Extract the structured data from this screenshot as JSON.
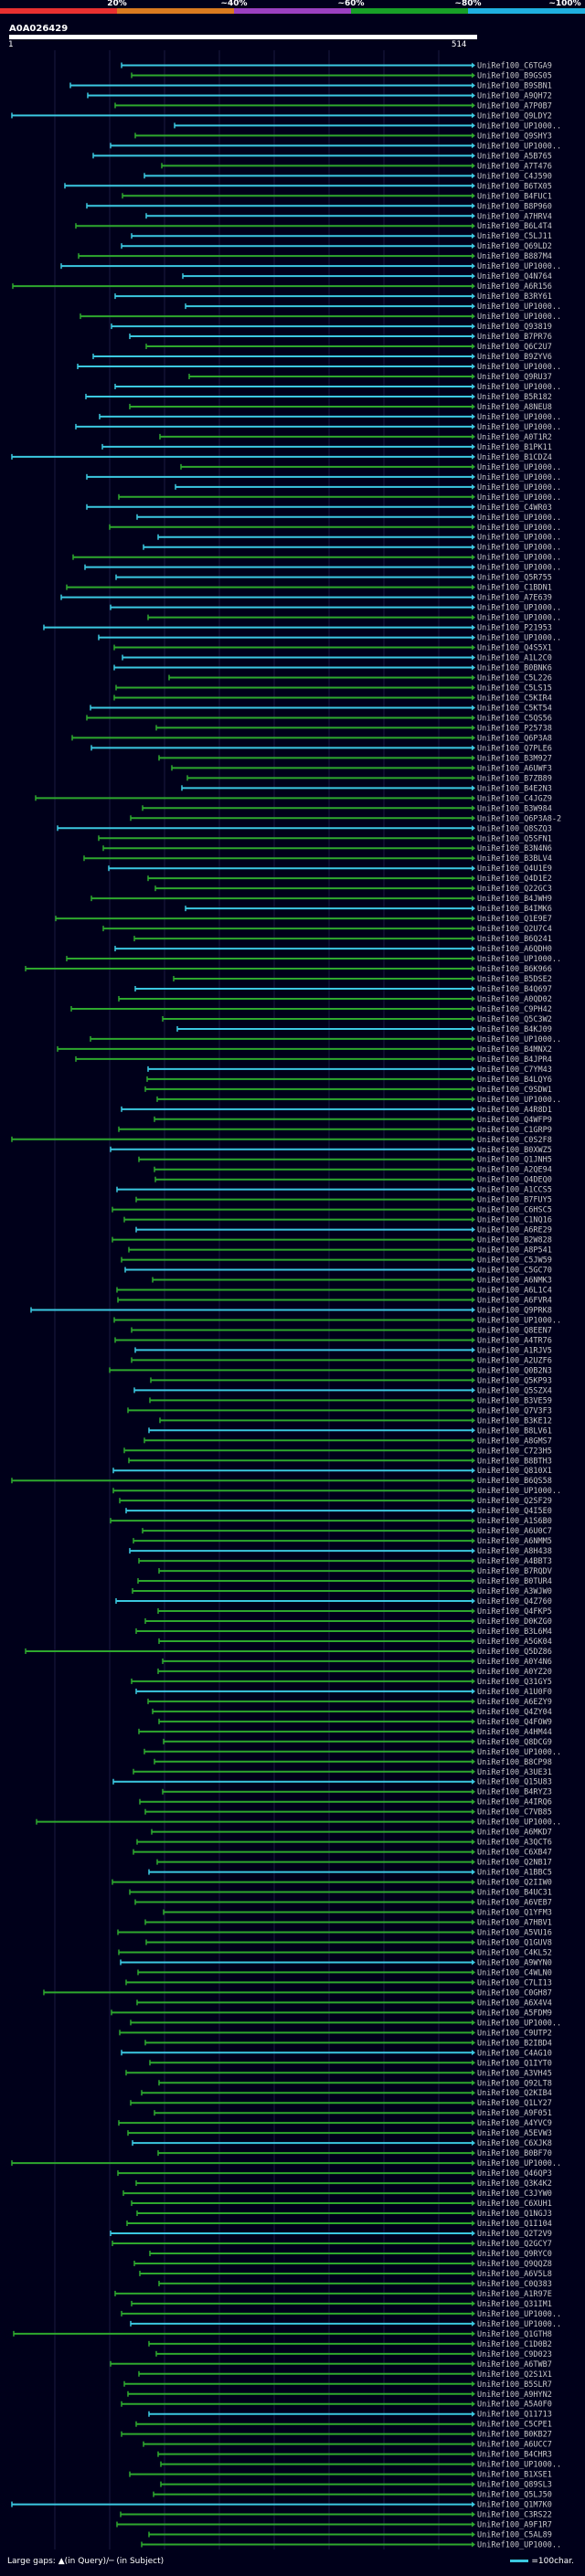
{
  "query": {
    "name": "A0A026429",
    "length_start": "1",
    "length_end": "514"
  },
  "identity_scale": {
    "labels": [
      "20%",
      "~40%",
      "~60%",
      "~80%",
      "~100%"
    ],
    "colors": [
      "#e83030",
      "#d97a20",
      "#9a40c0",
      "#18a028",
      "#1fb0e0"
    ]
  },
  "colors": {
    "green_hit": "#2ea82e",
    "cyan_hit": "#3bc8e0",
    "background": "#00001a"
  },
  "legend": {
    "gaps_text": "Large gaps: ▲(in Query)/─ (in Subject)",
    "scale_text": "=100char."
  },
  "hits": [
    "UniRef100_C6TGA9",
    "UniRef100_B9GS05",
    "UniRef100_B9SBN1",
    "UniRef100_A9QH72",
    "UniRef100_A7P0B7",
    "UniRef100_Q9LDY2",
    "UniRef100_UP1000..",
    "UniRef100_Q9SHY3",
    "UniRef100_UP1000..",
    "UniRef100_A5B765",
    "UniRef100_A7T476",
    "UniRef100_C4J590",
    "UniRef100_B6TX05",
    "UniRef100_B4FUC1",
    "UniRef100_B8P960",
    "UniRef100_A7HRV4",
    "UniRef100_B6L4T4",
    "UniRef100_C5LJ11",
    "UniRef100_Q69LD2",
    "UniRef100_B887M4",
    "UniRef100_UP1000..",
    "UniRef100_Q4N764",
    "UniRef100_A6R156",
    "UniRef100_B3RY61",
    "UniRef100_UP1000..",
    "UniRef100_UP1000..",
    "UniRef100_Q93819",
    "UniRef100_B7PR76",
    "UniRef100_Q6C2U7",
    "UniRef100_B9ZYV6",
    "UniRef100_UP1000..",
    "UniRef100_Q9RU37",
    "UniRef100_UP1000..",
    "UniRef100_B5R182",
    "UniRef100_A8NEU8",
    "UniRef100_UP1000..",
    "UniRef100_UP1000..",
    "UniRef100_A0T1R2",
    "UniRef100_B1PK11",
    "UniRef100_B1CDZ4",
    "UniRef100_UP1000..",
    "UniRef100_UP1000..",
    "UniRef100_UP1000..",
    "UniRef100_UP1000..",
    "UniRef100_C4WR03",
    "UniRef100_UP1000..",
    "UniRef100_UP1000..",
    "UniRef100_UP1000..",
    "UniRef100_UP1000..",
    "UniRef100_UP1000..",
    "UniRef100_UP1000..",
    "UniRef100_Q5R755",
    "UniRef100_C1BDN1",
    "UniRef100_A7E639",
    "UniRef100_UP1000..",
    "UniRef100_UP1000..",
    "UniRef100_P21953",
    "UniRef100_UP1000..",
    "UniRef100_Q4S5X1",
    "UniRef100_A1L2C0",
    "UniRef100_B0BNK6",
    "UniRef100_C5L226",
    "UniRef100_C5LS15",
    "UniRef100_C5KIR4",
    "UniRef100_C5KT54",
    "UniRef100_C5QS56",
    "UniRef100_P25738",
    "UniRef100_Q6P3A8",
    "UniRef100_Q7PLE6",
    "UniRef100_B3M927",
    "UniRef100_A6UWF3",
    "UniRef100_B7ZB89",
    "UniRef100_B4E2N3",
    "UniRef100_C4JGZ9",
    "UniRef100_B3W984",
    "UniRef100_Q6P3A8-2",
    "UniRef100_Q8SZQ3",
    "UniRef100_Q5SFN1",
    "UniRef100_B3N4N6",
    "UniRef100_B3BLV4",
    "UniRef100_Q4U1E9",
    "UniRef100_Q4D1E2",
    "UniRef100_Q22GC3",
    "UniRef100_B4JWH9",
    "UniRef100_B4IMK6",
    "UniRef100_Q1E9E7",
    "UniRef100_Q2U7C4",
    "UniRef100_B6Q241",
    "UniRef100_A6QDH0",
    "UniRef100_UP1000..",
    "UniRef100_B6K966",
    "UniRef100_B5DSE2",
    "UniRef100_B4Q697",
    "UniRef100_A0QD02",
    "UniRef100_C9PH42",
    "UniRef100_Q5C3W2",
    "UniRef100_B4KJ09",
    "UniRef100_UP1000..",
    "UniRef100_B4MNX2",
    "UniRef100_B4JPR4",
    "UniRef100_C7YM43",
    "UniRef100_B4LQY6",
    "UniRef100_C9SDW1",
    "UniRef100_UP1000..",
    "UniRef100_A4R8D1",
    "UniRef100_Q4WFP9",
    "UniRef100_C1GRP9",
    "UniRef100_C0S2F8",
    "UniRef100_B0XWZ5",
    "UniRef100_Q1JNH5",
    "UniRef100_A2QE94",
    "UniRef100_Q4DEQ0",
    "UniRef100_A1CCS5",
    "UniRef100_B7FUY5",
    "UniRef100_C6HSC5",
    "UniRef100_C1NQ16",
    "UniRef100_A6RE29",
    "UniRef100_B2W828",
    "UniRef100_A8P541",
    "UniRef100_C5JW59",
    "UniRef100_C5GC70",
    "UniRef100_A6NMK3",
    "UniRef100_A6L1C4",
    "UniRef100_A6FVR4",
    "UniRef100_Q9PRK8",
    "UniRef100_UP1000..",
    "UniRef100_Q8EEN7",
    "UniRef100_A4TR76",
    "UniRef100_A1RJV5",
    "UniRef100_A2UZF6",
    "UniRef100_Q0B2N3",
    "UniRef100_Q5KP93",
    "UniRef100_Q5SZX4",
    "UniRef100_B3VE59",
    "UniRef100_Q7V3F3",
    "UniRef100_B3KE12",
    "UniRef100_B8LV61",
    "UniRef100_A8GMS7",
    "UniRef100_C723H5",
    "UniRef100_B8BTH3",
    "UniRef100_Q810X1",
    "UniRef100_B6QS58",
    "UniRef100_UP1000..",
    "UniRef100_Q2SF29",
    "UniRef100_Q4I5E0",
    "UniRef100_A1S6B0",
    "UniRef100_A6U0C7",
    "UniRef100_A6NMM5",
    "UniRef100_A8H438",
    "UniRef100_A4BBT3",
    "UniRef100_B7RQDV",
    "UniRef100_B0TUR4",
    "UniRef100_A3WJW0",
    "UniRef100_Q4Z760",
    "UniRef100_Q4FKP5",
    "UniRef100_D0KZG0",
    "UniRef100_B3L6M4",
    "UniRef100_A5GK04",
    "UniRef100_Q5DZ86",
    "UniRef100_A0Y4N6",
    "UniRef100_A0YZ20",
    "UniRef100_Q31GY5",
    "UniRef100_A1U0F0",
    "UniRef100_A6EZY9",
    "UniRef100_Q4ZY04",
    "UniRef100_Q4FOW9",
    "UniRef100_A4HM44",
    "UniRef100_Q8DCG9",
    "UniRef100_UP1000..",
    "UniRef100_B8CP98",
    "UniRef100_A3UE31",
    "UniRef100_Q15U83",
    "UniRef100_B4RYZ3",
    "UniRef100_A4IRQ6",
    "UniRef100_C7VB85",
    "UniRef100_UP1000..",
    "UniRef100_A6MKD7",
    "UniRef100_A3QCT6",
    "UniRef100_C6XB47",
    "UniRef100_Q2NB17",
    "UniRef100_A1BBC5",
    "UniRef100_Q2IIW0",
    "UniRef100_B4UC31",
    "UniRef100_A6VEB7",
    "UniRef100_Q1YFM3",
    "UniRef100_A7HBV1",
    "UniRef100_A5VU16",
    "UniRef100_Q1GUV8",
    "UniRef100_C4KL52",
    "UniRef100_A9WYN0",
    "UniRef100_C4WLN0",
    "UniRef100_C7LI13",
    "UniRef100_C0GH87",
    "UniRef100_A6X4V4",
    "UniRef100_A5FDM9",
    "UniRef100_UP1000..",
    "UniRef100_C9UTP2",
    "UniRef100_B2IBD4",
    "UniRef100_C4AG10",
    "UniRef100_Q1IYT0",
    "UniRef100_A3VH45",
    "UniRef100_Q92LT8",
    "UniRef100_Q2KIB4",
    "UniRef100_Q1LY27",
    "UniRef100_A9F051",
    "UniRef100_A4YVC9",
    "UniRef100_A5EVW3",
    "UniRef100_C6XJK8",
    "UniRef100_B0BF70",
    "UniRef100_UP1000..",
    "UniRef100_Q46QP3",
    "UniRef100_Q3K4K2",
    "UniRef100_C3JYW0",
    "UniRef100_C6XUH1",
    "UniRef100_Q1NGJ3",
    "UniRef100_Q1I104",
    "UniRef100_Q2T2V9",
    "UniRef100_Q2GCY7",
    "UniRef100_Q9RYC0",
    "UniRef100_Q9QQZ8",
    "UniRef100_A6V5L8",
    "UniRef100_C0Q383",
    "UniRef100_A1R97E",
    "UniRef100_Q31IM1",
    "UniRef100_UP1000..",
    "UniRef100_UP1000..",
    "UniRef100_Q1GTH8",
    "UniRef100_C1D0B2",
    "UniRef100_C9D023",
    "UniRef100_A6TWB7",
    "UniRef100_Q2S1X1",
    "UniRef100_B5SLR7",
    "UniRef100_A9HYN2",
    "UniRef100_A5A0F0",
    "UniRef100_Q11713",
    "UniRef100_C5CPE1",
    "UniRef100_B0KB27",
    "UniRef100_A6UCC7",
    "UniRef100_B4CHR3",
    "UniRef100_UP1000..",
    "UniRef100_B1XSE1",
    "UniRef100_Q89SL3",
    "UniRef100_Q5LJ50",
    "UniRef100_Q1M7K0",
    "UniRef100_C3RS22",
    "UniRef100_A9F1R7",
    "UniRef100_C5AL89",
    "UniRef100_UP1000.."
  ]
}
